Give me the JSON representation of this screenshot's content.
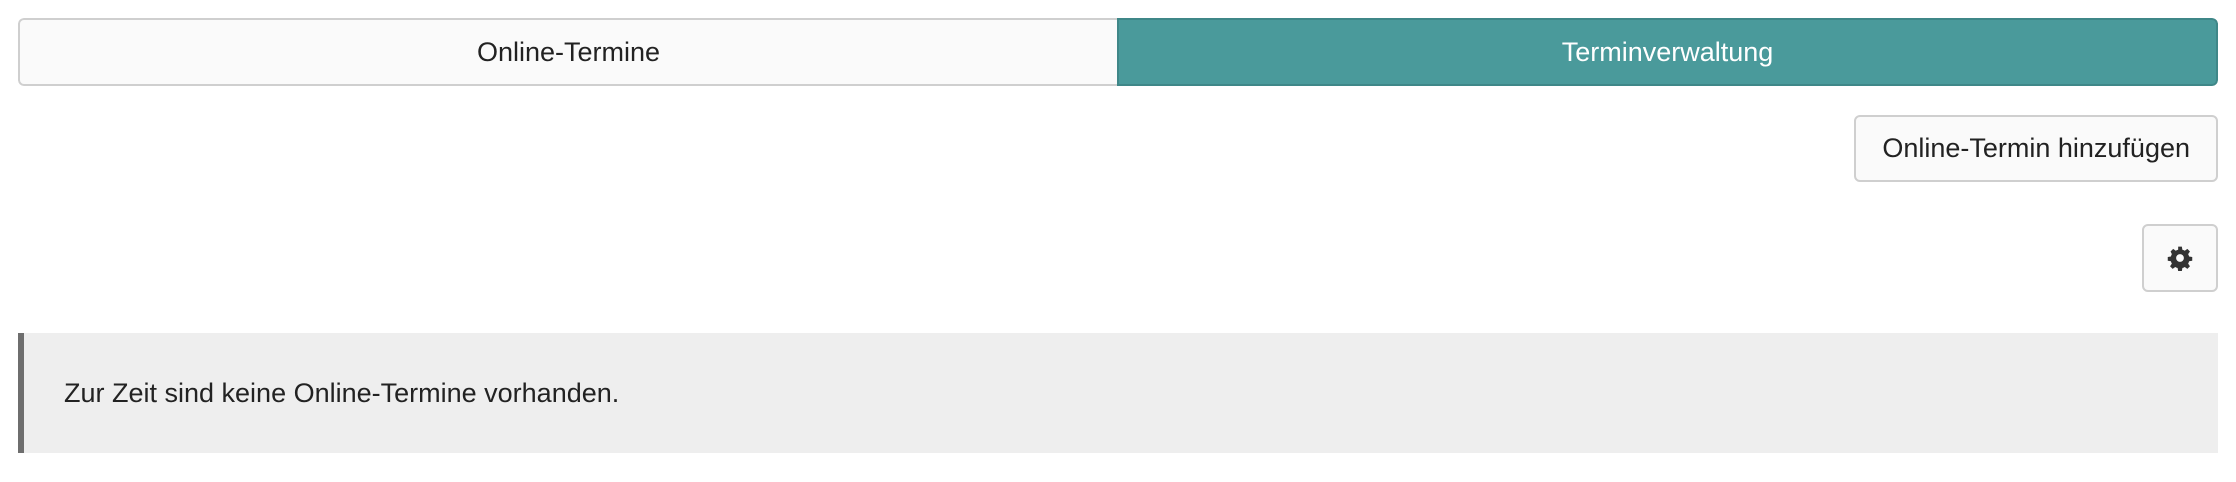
{
  "tabs": [
    {
      "label": "Online-Termine",
      "active": false
    },
    {
      "label": "Terminverwaltung",
      "active": true
    }
  ],
  "toolbar": {
    "add_label": "Online-Termin hinzufügen",
    "settings_icon": "gear-icon"
  },
  "notice": {
    "message": "Zur Zeit sind keine Online-Termine vorhanden."
  },
  "colors": {
    "accent": "#4a9a9b",
    "notice_bg": "#eeeeee",
    "notice_border": "#6e6e6e"
  }
}
